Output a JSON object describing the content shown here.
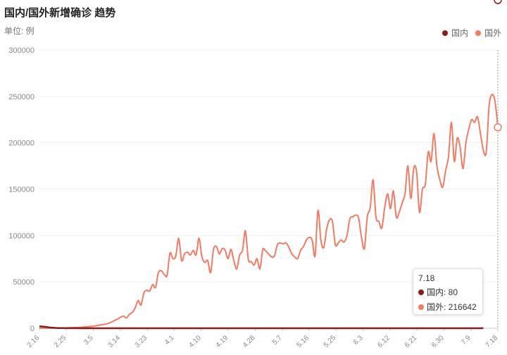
{
  "header": {
    "title": "国内/国外新增确诊 趋势",
    "unit": "单位: 例"
  },
  "legend": [
    {
      "name": "国内",
      "color": "#8B1A1A"
    },
    {
      "name": "国外",
      "color": "#F47A62"
    }
  ],
  "tooltip": {
    "date": "7.18",
    "rows": [
      {
        "label": "国内: 80",
        "color": "#8B1A1A"
      },
      {
        "label": "国外: 216642",
        "color": "#F47A62"
      }
    ]
  },
  "chart_data": {
    "type": "line",
    "ylim": [
      0,
      300000
    ],
    "yticks": [
      0,
      50000,
      100000,
      150000,
      200000,
      250000,
      300000
    ],
    "xticks": [
      "2.16",
      "2.25",
      "3.5",
      "3.14",
      "3.23",
      "4.1",
      "4.10",
      "4.19",
      "4.28",
      "5.7",
      "5.16",
      "5.25",
      "6.3",
      "6.12",
      "6.21",
      "6.30",
      "7.9",
      "7.18"
    ],
    "grid": true,
    "legend_position": "top-right",
    "series": [
      {
        "name": "国内",
        "color": "#8B1A1A",
        "values": [
          2000,
          1800,
          1500,
          1000,
          600,
          500,
          300,
          200,
          150,
          120,
          100,
          80,
          60,
          50,
          40,
          40,
          35,
          30,
          30,
          30,
          30,
          30,
          35,
          40,
          40,
          40,
          45,
          45,
          45,
          40,
          40,
          40,
          40,
          35,
          35,
          30,
          30,
          30,
          30,
          30,
          30,
          30,
          30,
          30,
          30,
          30,
          25,
          25,
          25,
          25,
          20,
          20,
          20,
          20,
          20,
          20,
          20,
          20,
          20,
          20,
          20,
          20,
          20,
          20,
          20,
          20,
          20,
          20,
          20,
          20,
          20,
          20,
          20,
          20,
          20,
          20,
          20,
          20,
          20,
          20,
          20,
          20,
          20,
          20,
          20,
          20,
          20,
          20,
          20,
          20,
          20,
          20,
          20,
          20,
          20,
          20,
          20,
          20,
          20,
          20,
          20,
          20,
          20,
          20,
          20,
          20,
          20,
          20,
          20,
          20,
          20,
          20,
          20,
          20,
          20,
          20,
          20,
          20,
          20,
          20,
          20,
          20,
          20,
          20,
          20,
          20,
          20,
          20,
          20,
          20,
          20,
          20,
          20,
          20,
          20,
          20,
          20,
          20,
          20,
          20,
          20,
          20,
          20,
          20,
          20,
          20,
          20,
          20,
          20,
          20,
          20,
          20,
          20,
          80
        ]
      },
      {
        "name": "国外",
        "color": "#F47A62",
        "values": [
          100,
          80,
          150,
          100,
          200,
          200,
          250,
          300,
          300,
          400,
          500,
          600,
          700,
          800,
          1000,
          1200,
          1500,
          1800,
          2000,
          2500,
          3000,
          3500,
          4000,
          4500,
          5500,
          7000,
          8500,
          10000,
          12000,
          13000,
          11000,
          15000,
          17000,
          22000,
          30000,
          25000,
          38000,
          41000,
          40000,
          47000,
          44000,
          60000,
          62000,
          58000,
          57000,
          81000,
          75000,
          78000,
          97000,
          73000,
          80000,
          82000,
          79000,
          84000,
          79000,
          97000,
          77000,
          71000,
          73000,
          60000,
          85000,
          88000,
          80000,
          86000,
          84000,
          75000,
          85000,
          73000,
          64000,
          79000,
          84000,
          105000,
          74000,
          72000,
          68000,
          75000,
          64000,
          85000,
          83000,
          80000,
          77000,
          78000,
          90000,
          92000,
          91000,
          92000,
          87000,
          80000,
          77000,
          75000,
          84000,
          88000,
          95000,
          98000,
          95000,
          78000,
          127000,
          95000,
          87000,
          107000,
          117000,
          115000,
          90000,
          92000,
          95000,
          93000,
          100000,
          118000,
          120000,
          122000,
          119000,
          98000,
          86000,
          120000,
          130000,
          160000,
          120000,
          115000,
          108000,
          130000,
          145000,
          129000,
          148000,
          120000,
          125000,
          135000,
          145000,
          175000,
          140000,
          172000,
          169000,
          125000,
          150000,
          155000,
          190000,
          180000,
          210000,
          175000,
          160000,
          152000,
          170000,
          185000,
          222000,
          180000,
          205000,
          195000,
          172000,
          200000,
          215000,
          225000,
          222000,
          228000,
          210000,
          192000,
          190000,
          240000,
          252000,
          245000,
          216642
        ]
      }
    ]
  }
}
